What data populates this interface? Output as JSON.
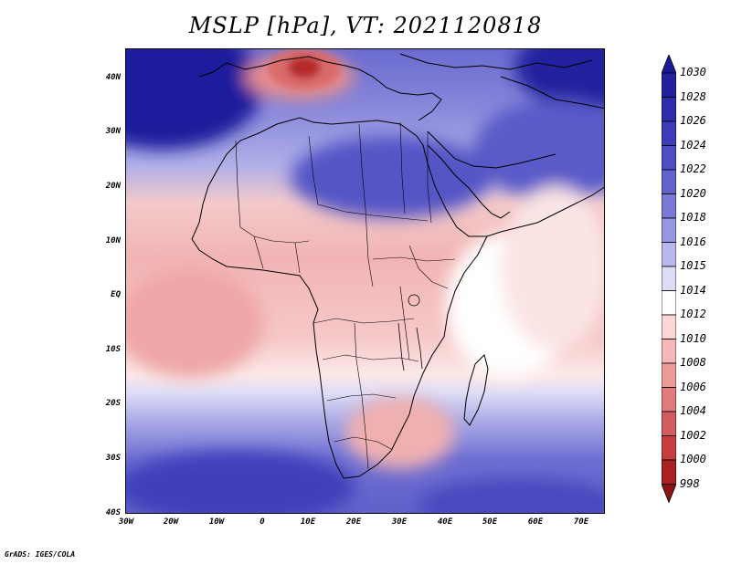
{
  "title": "MSLP [hPa], VT: 2021120818",
  "credit": "GrADS: IGES/COLA",
  "latitude_labels": [
    "40N",
    "30N",
    "20N",
    "10N",
    "EQ",
    "10S",
    "20S",
    "30S",
    "40S"
  ],
  "longitude_labels": [
    "30W",
    "20W",
    "10W",
    "0",
    "10E",
    "20E",
    "30E",
    "40E",
    "50E",
    "60E",
    "70E"
  ],
  "colorbar": {
    "levels": [
      "1030",
      "1028",
      "1026",
      "1024",
      "1022",
      "1020",
      "1018",
      "1016",
      "1015",
      "1014",
      "1012",
      "1010",
      "1008",
      "1006",
      "1004",
      "1002",
      "1000",
      "998"
    ],
    "colors": [
      "#1a1a96",
      "#22229f",
      "#2d2dae",
      "#3c3cba",
      "#4d4dc4",
      "#6262cd",
      "#7a7ad6",
      "#9797e1",
      "#b8b8ec",
      "#dcdcf6",
      "#ffffff",
      "#fbd6d6",
      "#f4b8b8",
      "#ec9a9a",
      "#e27c7c",
      "#d45c5c",
      "#c63e3e",
      "#a82222",
      "#8c1414"
    ]
  }
}
